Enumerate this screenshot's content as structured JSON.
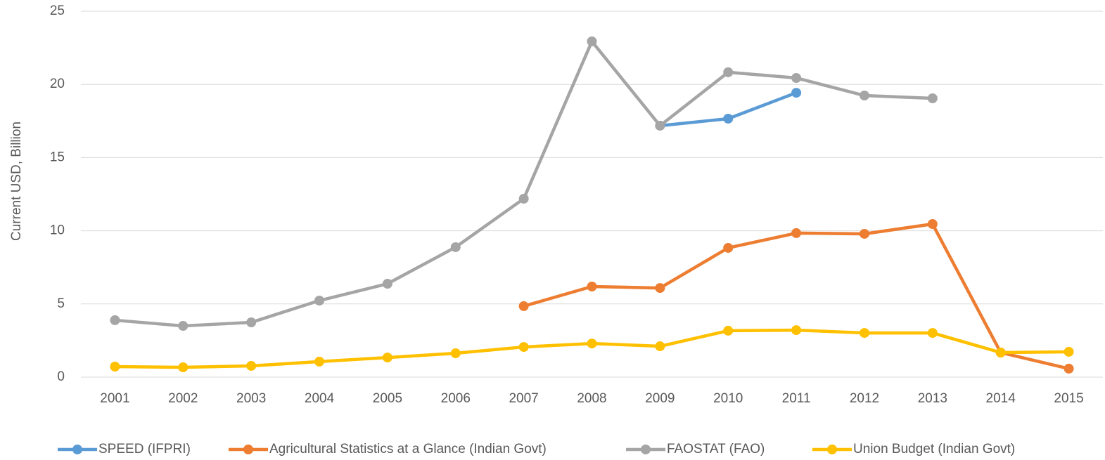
{
  "chart_data": {
    "type": "line",
    "y_axis_label": "Current USD, Billion",
    "categories": [
      "2001",
      "2002",
      "2003",
      "2004",
      "2005",
      "2006",
      "2007",
      "2008",
      "2009",
      "2010",
      "2011",
      "2012",
      "2013",
      "2014",
      "2015"
    ],
    "ylim": [
      0,
      25
    ],
    "yticks": [
      0,
      5,
      10,
      15,
      20,
      25
    ],
    "grid": true,
    "legend": "bottom",
    "series": [
      {
        "name": "SPEED (IFPRI)",
        "color": "#5b9bd5",
        "values": [
          null,
          null,
          null,
          null,
          null,
          null,
          null,
          null,
          17.18,
          17.66,
          19.43,
          null,
          null,
          null,
          null
        ]
      },
      {
        "name": "Agricultural Statistics at a Glance (Indian Govt)",
        "color": "#ed7d31",
        "values": [
          null,
          null,
          null,
          null,
          null,
          null,
          4.85,
          6.19,
          6.09,
          8.83,
          9.84,
          9.79,
          10.46,
          1.68,
          0.58
        ]
      },
      {
        "name": "FAOSTAT (FAO)",
        "color": "#a5a5a5",
        "values": [
          3.89,
          3.5,
          3.74,
          5.23,
          6.38,
          8.88,
          12.19,
          22.94,
          17.18,
          20.83,
          20.44,
          19.24,
          19.05,
          null,
          null
        ]
      },
      {
        "name": "Union Budget (Indian Govt)",
        "color": "#ffc000",
        "values": [
          0.72,
          0.67,
          0.77,
          1.06,
          1.34,
          1.63,
          2.06,
          2.3,
          2.11,
          3.17,
          3.21,
          3.02,
          3.02,
          1.68,
          1.73
        ]
      }
    ]
  }
}
